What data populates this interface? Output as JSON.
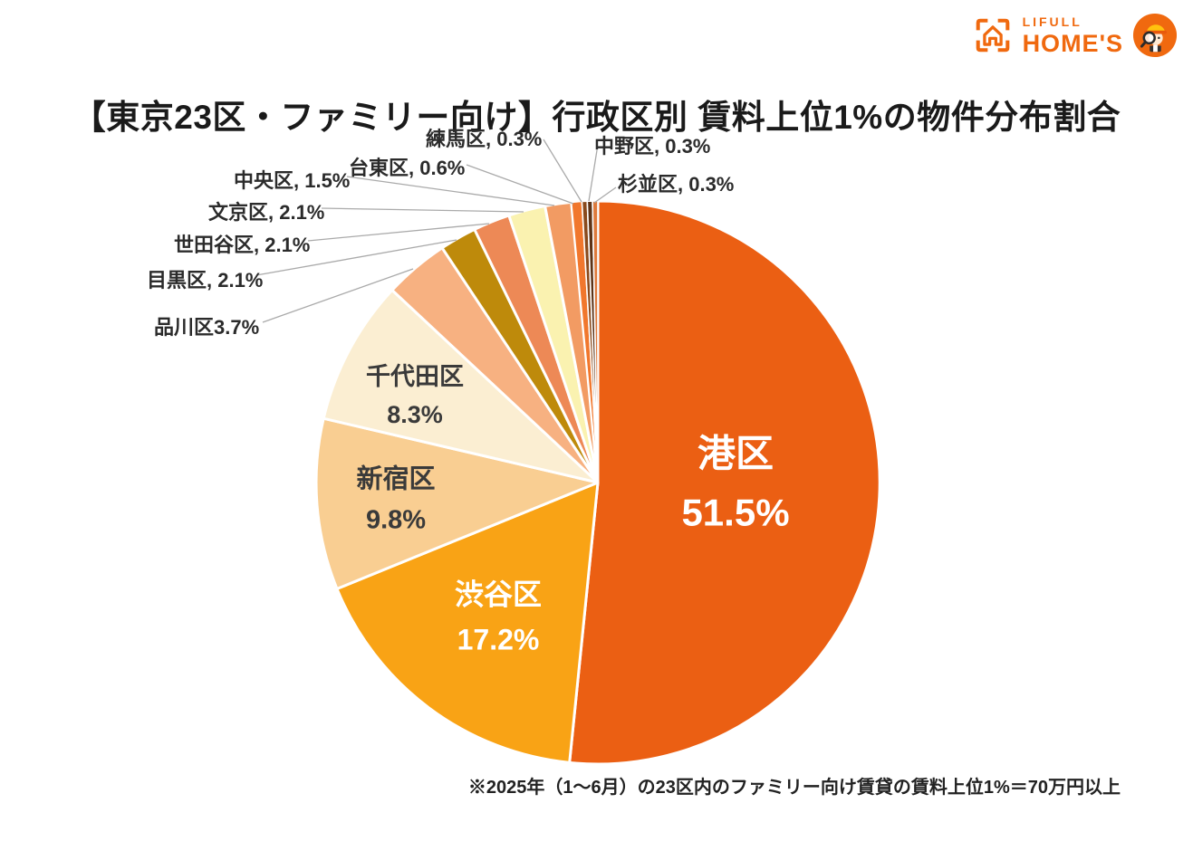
{
  "header": {
    "logo": {
      "brand_line1": "LIFULL",
      "brand_line2": "HOME'S",
      "brand_color": "#F0690F"
    }
  },
  "title": "【東京23区・ファミリー向け】行政区別 賃料上位1%の物件分布割合",
  "footnote": "※2025年（1〜6月）の23区内のファミリー向け賃貸の賃料上位1%＝70万円以上",
  "chart_data": {
    "type": "pie",
    "title": "【東京23区・ファミリー向け】行政区別 賃料上位1%の物件分布割合",
    "units": "%",
    "start_angle_deg": -90,
    "direction": "clockwise",
    "slices": [
      {
        "name": "港区",
        "value": 51.5,
        "pct_label": "51.5%",
        "color": "#EB5F13",
        "label": "inside"
      },
      {
        "name": "渋谷区",
        "value": 17.2,
        "pct_label": "17.2%",
        "color": "#F9A315",
        "label": "inside"
      },
      {
        "name": "新宿区",
        "value": 9.8,
        "pct_label": "9.8%",
        "color": "#F9CE92",
        "label": "inside"
      },
      {
        "name": "千代田区",
        "value": 8.3,
        "pct_label": "8.3%",
        "color": "#FBEED2",
        "label": "inside"
      },
      {
        "name": "品川区",
        "value": 3.7,
        "pct_label": "3.7%",
        "color": "#F7B181",
        "label": "callout",
        "callout_text": "品川区3.7%"
      },
      {
        "name": "目黒区",
        "value": 2.1,
        "pct_label": "2.1%",
        "color": "#BE8A0B",
        "label": "callout",
        "callout_text": "目黒区, 2.1%"
      },
      {
        "name": "世田谷区",
        "value": 2.1,
        "pct_label": "2.1%",
        "color": "#ED8956",
        "label": "callout",
        "callout_text": "世田谷区, 2.1%"
      },
      {
        "name": "文京区",
        "value": 2.1,
        "pct_label": "2.1%",
        "color": "#FAF2B0",
        "label": "callout",
        "callout_text": "文京区, 2.1%"
      },
      {
        "name": "中央区",
        "value": 1.5,
        "pct_label": "1.5%",
        "color": "#F29B63",
        "label": "callout",
        "callout_text": "中央区, 1.5%"
      },
      {
        "name": "台東区",
        "value": 0.6,
        "pct_label": "0.6%",
        "color": "#F1772D",
        "label": "callout",
        "callout_text": "台東区, 0.6%"
      },
      {
        "name": "練馬区",
        "value": 0.3,
        "pct_label": "0.3%",
        "color": "#8A4A1C",
        "label": "callout",
        "callout_text": "練馬区, 0.3%"
      },
      {
        "name": "中野区",
        "value": 0.3,
        "pct_label": "0.3%",
        "color": "#5D3317",
        "label": "callout",
        "callout_text": "中野区, 0.3%"
      },
      {
        "name": "杉並区",
        "value": 0.3,
        "pct_label": "0.3%",
        "color": "#DE7A3C",
        "label": "callout",
        "callout_text": "杉並区, 0.3%"
      }
    ]
  }
}
